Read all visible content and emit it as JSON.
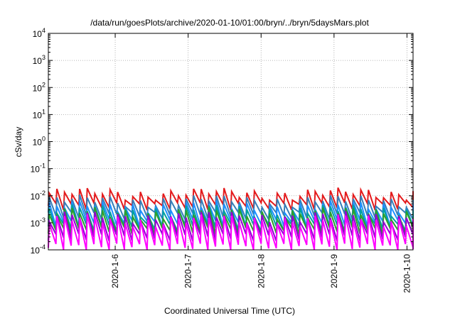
{
  "chart_data": {
    "type": "line",
    "title": "/data/run/goesPlots/archive/2020-01-10/01:00/bryn/../bryn/5daysMars.plot",
    "xlabel": "Coordinated Universal Time (UTC)",
    "ylabel": "cSv/day",
    "x_range": [
      "2020-01-05T02:00",
      "2020-01-10T02:00"
    ],
    "y_log_scale": true,
    "ylim": [
      0.0001,
      10000
    ],
    "y_ticks": [
      {
        "base": "10",
        "exp": "-4"
      },
      {
        "base": "10",
        "exp": "-3"
      },
      {
        "base": "10",
        "exp": "-2"
      },
      {
        "base": "10",
        "exp": "-1"
      },
      {
        "base": "10",
        "exp": "0"
      },
      {
        "base": "10",
        "exp": "1"
      },
      {
        "base": "10",
        "exp": "2"
      },
      {
        "base": "10",
        "exp": "3"
      },
      {
        "base": "10",
        "exp": "4"
      }
    ],
    "x_ticks": [
      {
        "label": "2020-1-6",
        "date": "2020-01-06T00:00"
      },
      {
        "label": "2020-1-7",
        "date": "2020-01-07T00:00"
      },
      {
        "label": "2020-1-8",
        "date": "2020-01-08T00:00"
      },
      {
        "label": "2020-1-9",
        "date": "2020-01-09T00:00"
      },
      {
        "label": "2020-1-10",
        "date": "2020-01-10T00:00"
      }
    ],
    "grid": true,
    "sawtooth_period_hours": 2.5,
    "series": [
      {
        "color": "#e41a1c",
        "peak": 0.0125,
        "trough": 0.0042
      },
      {
        "color": "#377eb8",
        "peak": 0.0068,
        "trough": 0.0019
      },
      {
        "color": "#1e90ff",
        "peak": 0.0042,
        "trough": 0.001
      },
      {
        "color": "#00a0a0",
        "peak": 0.003,
        "trough": 0.0007
      },
      {
        "color": "#2ca02c",
        "peak": 0.0024,
        "trough": 0.00052
      },
      {
        "color": "#9400d3",
        "peak": 0.0017,
        "trough": 0.0003
      },
      {
        "color": "#ff00ff",
        "peak": 0.0013,
        "trough": 0.00013
      }
    ]
  }
}
